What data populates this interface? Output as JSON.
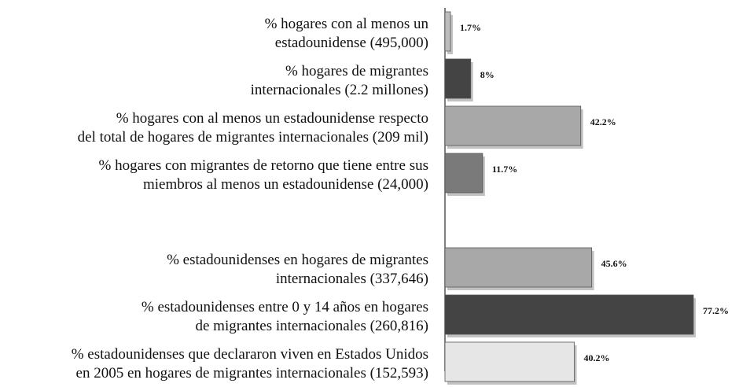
{
  "chart_data": {
    "type": "bar",
    "orientation": "horizontal",
    "categories": [
      [
        "% hogares con al menos un",
        "estadounidense (495,000)"
      ],
      [
        "% hogares de migrantes",
        "internacionales (2.2 millones)"
      ],
      [
        "% hogares con al menos un estadounidense respecto",
        "del total de hogares de migrantes internacionales (209 mil)"
      ],
      [
        "% hogares con migrantes de retorno que tiene entre sus",
        "miembros al menos un estadounidense (24,000)"
      ],
      null,
      [
        "% estadounidenses en hogares de migrantes",
        "internacionales (337,646)"
      ],
      [
        "% estadounidenses entre 0 y 14 años en hogares",
        "de migrantes internacionales (260,816)"
      ],
      [
        "% estadounidenses que declararon viven en Estados Unidos",
        "en 2005 en hogares de migrantes internacionales (152,593)"
      ]
    ],
    "values": [
      1.7,
      8,
      42.2,
      11.7,
      null,
      45.6,
      77.2,
      40.2
    ],
    "value_labels": [
      "1.7%",
      "8%",
      "42.2%",
      "11.7%",
      null,
      "45.6%",
      "77.2%",
      "40.2%"
    ],
    "colors": [
      "#bdbdbd",
      "#444444",
      "#a8a8a8",
      "#7a7a7a",
      null,
      "#a8a8a8",
      "#444444",
      "#e6e6e6"
    ]
  }
}
